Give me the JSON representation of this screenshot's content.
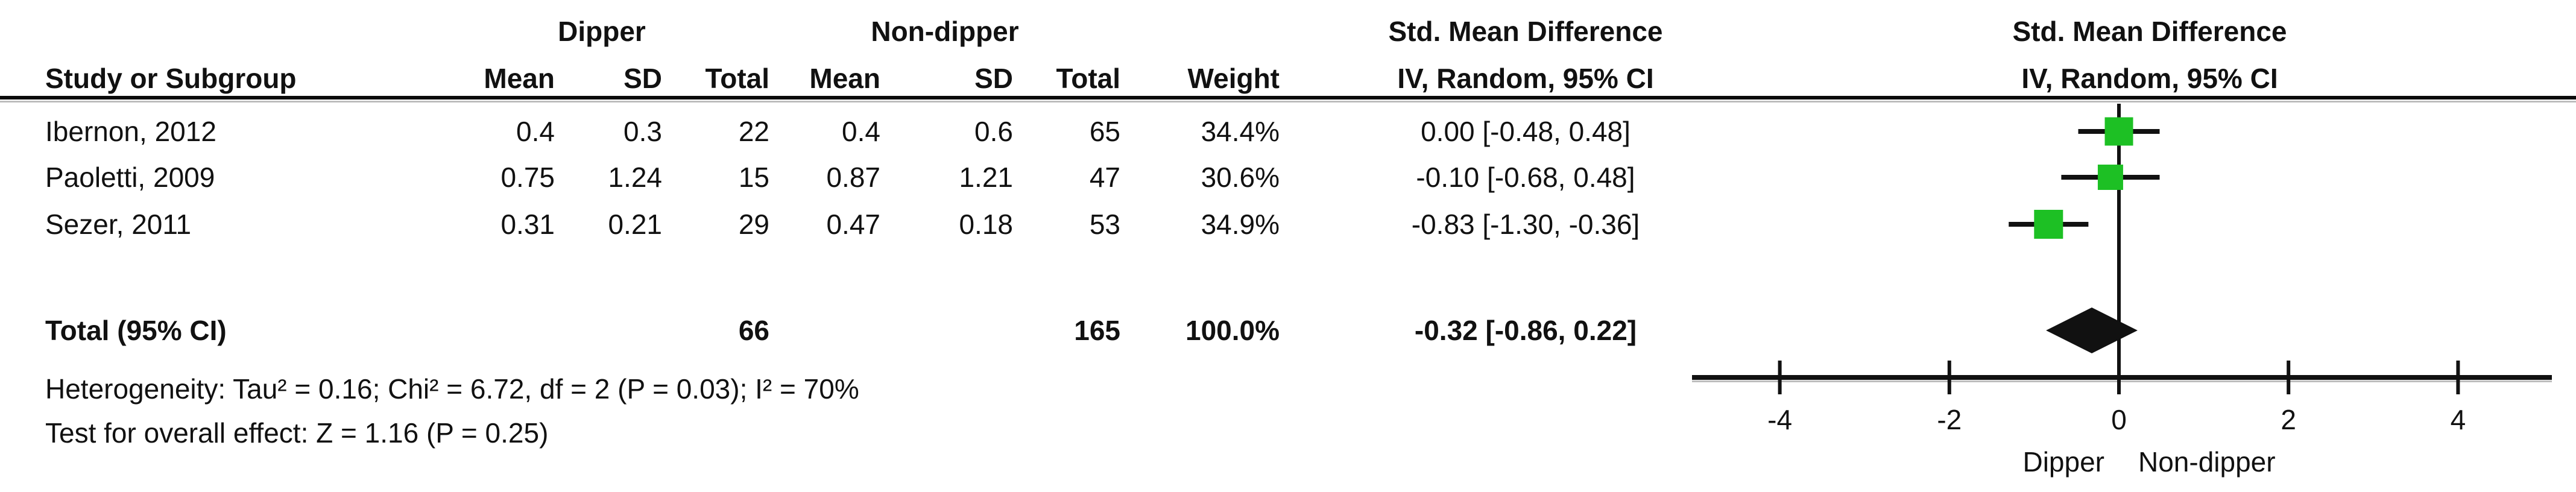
{
  "table": {
    "group1_label": "Dipper",
    "group2_label": "Non-dipper",
    "effect_header_line1": "Std. Mean Difference",
    "effect_header_line2": "IV, Random, 95% CI",
    "headers": {
      "study": "Study or Subgroup",
      "mean": "Mean",
      "sd": "SD",
      "total": "Total",
      "weight": "Weight",
      "ci": "IV, Random, 95% CI"
    },
    "rows": [
      {
        "study": "Ibernon, 2012",
        "mean1": "0.4",
        "sd1": "0.3",
        "total1": "22",
        "mean2": "0.4",
        "sd2": "0.6",
        "total2": "65",
        "weight": "34.4%",
        "ci": "0.00 [-0.48, 0.48]"
      },
      {
        "study": "Paoletti, 2009",
        "mean1": "0.75",
        "sd1": "1.24",
        "total1": "15",
        "mean2": "0.87",
        "sd2": "1.21",
        "total2": "47",
        "weight": "30.6%",
        "ci": "-0.10 [-0.68, 0.48]"
      },
      {
        "study": "Sezer, 2011",
        "mean1": "0.31",
        "sd1": "0.21",
        "total1": "29",
        "mean2": "0.47",
        "sd2": "0.18",
        "total2": "53",
        "weight": "34.9%",
        "ci": "-0.83 [-1.30, -0.36]"
      }
    ],
    "total_row": {
      "label": "Total (95% CI)",
      "total1": "66",
      "total2": "165",
      "weight": "100.0%",
      "ci": "-0.32 [-0.86, 0.22]"
    },
    "heterogeneity": "Heterogeneity: Tau² = 0.16; Chi² = 6.72, df = 2 (P = 0.03); I² = 70%",
    "overall_effect": "Test for overall effect: Z = 1.16 (P = 0.25)"
  },
  "chart_data": {
    "type": "forest",
    "title": "Std. Mean Difference",
    "subtitle": "IV, Random, 95% CI",
    "effect_measure": "Std. Mean Difference, IV, Random, 95% CI",
    "xlim": [
      -5,
      5
    ],
    "x_ticks": [
      -4,
      -2,
      0,
      2,
      4
    ],
    "direction_labels": {
      "left": "Dipper",
      "right": "Non-dipper"
    },
    "studies": [
      {
        "name": "Ibernon, 2012",
        "effect": 0.0,
        "ci_low": -0.48,
        "ci_high": 0.48,
        "weight_pct": 34.4
      },
      {
        "name": "Paoletti, 2009",
        "effect": -0.1,
        "ci_low": -0.68,
        "ci_high": 0.48,
        "weight_pct": 30.6
      },
      {
        "name": "Sezer, 2011",
        "effect": -0.83,
        "ci_low": -1.3,
        "ci_high": -0.36,
        "weight_pct": 34.9
      }
    ],
    "total": {
      "name": "Total (95% CI)",
      "effect": -0.32,
      "ci_low": -0.86,
      "ci_high": 0.22,
      "weight_pct": 100.0
    },
    "marker_color": "#1dc024",
    "line_color": "#111111"
  }
}
